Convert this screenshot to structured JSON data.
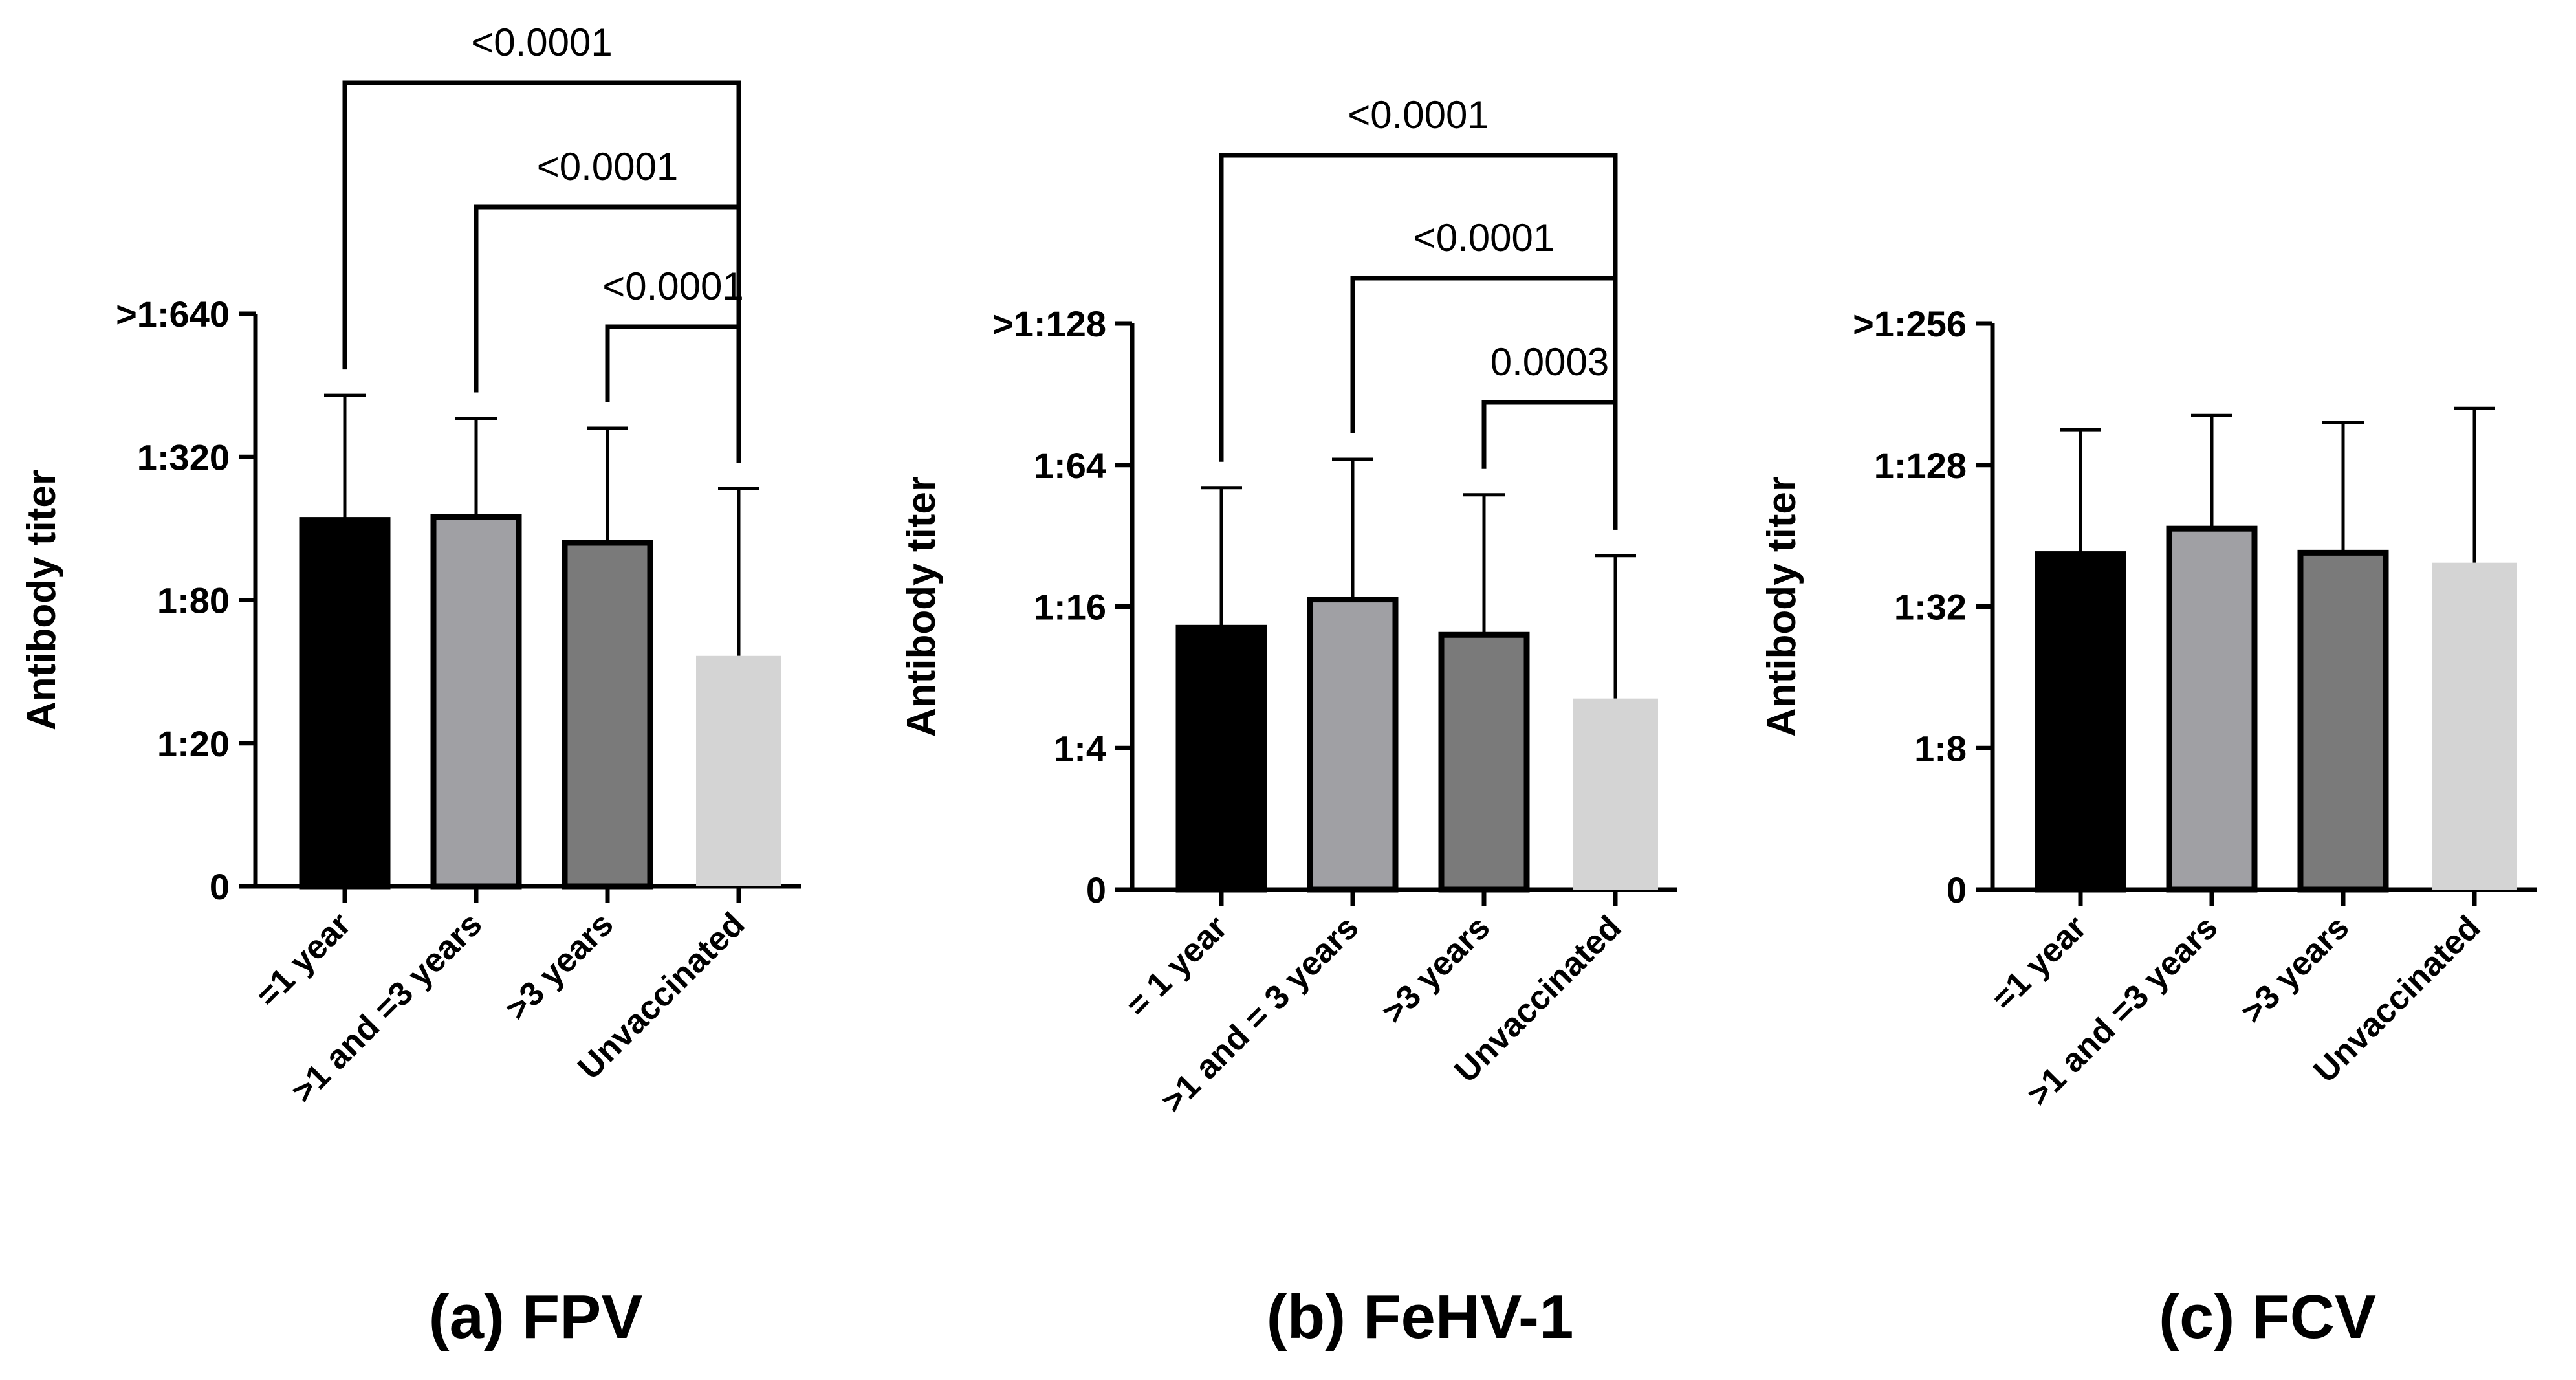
{
  "chart_data": [
    {
      "type": "bar",
      "title": "(a) FPV",
      "xlabel": "",
      "ylabel": "Antibody titer",
      "yscale": "log2 titer levels",
      "y_ticks": [
        "0",
        "1:20",
        "1:80",
        "1:320",
        ">1:640"
      ],
      "ylim": [
        0,
        4
      ],
      "categories": [
        "=1 year",
        ">1 and =3 years",
        ">3 years",
        "Unvaccinated"
      ],
      "values": [
        2.56,
        2.58,
        2.4,
        1.61
      ],
      "error_upper": [
        3.43,
        3.27,
        3.2,
        2.78
      ],
      "colors": [
        "#000000",
        "#a0a0a4",
        "#7a7a7a",
        "#d4d4d4"
      ],
      "significance": [
        {
          "from": 0,
          "to": 3,
          "label": "<0.0001"
        },
        {
          "from": 1,
          "to": 3,
          "label": "<0.0001"
        },
        {
          "from": 2,
          "to": 3,
          "label": "<0.0001"
        }
      ]
    },
    {
      "type": "bar",
      "title": "(b) FeHV-1",
      "xlabel": "",
      "ylabel": "Antibody titer",
      "yscale": "log2 titer levels",
      "y_ticks": [
        "0",
        "1:4",
        "1:16",
        "1:64",
        ">1:128"
      ],
      "ylim": [
        0,
        4
      ],
      "categories": [
        "= 1 year",
        ">1 and = 3 years",
        ">3 years",
        "Unvaccinated"
      ],
      "values": [
        1.85,
        2.05,
        1.8,
        1.35
      ],
      "error_upper": [
        2.84,
        3.04,
        2.79,
        2.36
      ],
      "colors": [
        "#000000",
        "#a0a0a4",
        "#7a7a7a",
        "#d4d4d4"
      ],
      "significance": [
        {
          "from": 0,
          "to": 3,
          "label": "<0.0001"
        },
        {
          "from": 1,
          "to": 3,
          "label": "<0.0001"
        },
        {
          "from": 2,
          "to": 3,
          "label": "0.0003"
        }
      ]
    },
    {
      "type": "bar",
      "title": "(c) FCV",
      "xlabel": "",
      "ylabel": "Antibody titer",
      "yscale": "log2 titer levels",
      "y_ticks": [
        "0",
        "1:8",
        "1:32",
        "1:128",
        ">1:256"
      ],
      "ylim": [
        0,
        4
      ],
      "categories": [
        "=1 year",
        ">1 and =3 years",
        ">3 years",
        "Unvaccinated"
      ],
      "values": [
        2.37,
        2.55,
        2.38,
        2.31
      ],
      "error_upper": [
        3.25,
        3.35,
        3.3,
        3.4
      ],
      "colors": [
        "#000000",
        "#a0a0a4",
        "#7a7a7a",
        "#d4d4d4"
      ],
      "significance": []
    }
  ]
}
